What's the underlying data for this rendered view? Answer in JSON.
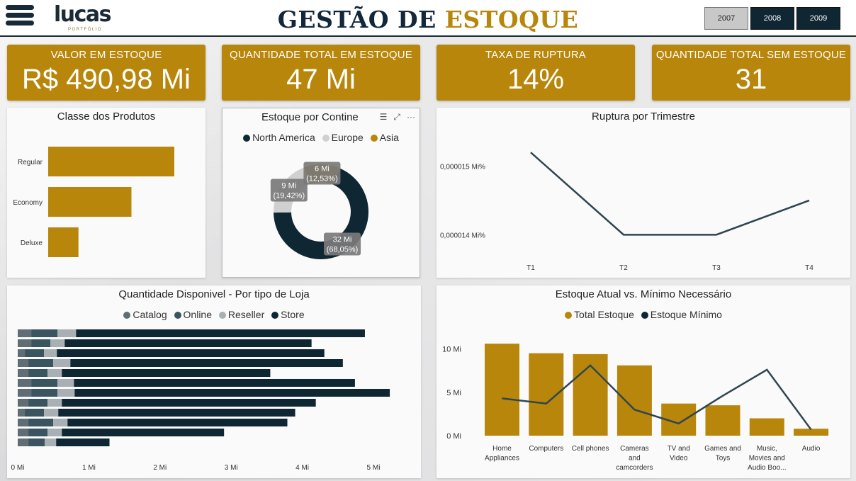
{
  "header": {
    "logo_text": "lucas",
    "logo_sub": "PORTFÓLIO",
    "title_part1": "GESTÃO DE",
    "title_part2": "ESTOQUE",
    "years": [
      {
        "label": "2007",
        "selected": false
      },
      {
        "label": "2008",
        "selected": true
      },
      {
        "label": "2009",
        "selected": true
      }
    ]
  },
  "kpis": [
    {
      "label": "VALOR EM ESTOQUE",
      "value": "R$ 490,98 Mi"
    },
    {
      "label": "QUANTIDADE TOTAL EM ESTOQUE",
      "value": "47 Mi"
    },
    {
      "label": "TAXA DE RUPTURA",
      "value": "14%"
    },
    {
      "label": "QUANTIDADE TOTAL SEM ESTOQUE",
      "value": "31"
    }
  ],
  "colors": {
    "gold": "#b8860b",
    "navy": "#0f2733",
    "slate": "#2f4550",
    "light_gray": "#c9c9c9"
  },
  "icons": {
    "menu": "hamburger-menu-icon",
    "filter": "filter-icon",
    "focus": "focus-mode-icon",
    "more": "more-options-icon"
  },
  "chart_data": [
    {
      "id": "classe",
      "type": "bar",
      "orientation": "horizontal",
      "title": "Classe dos Produtos",
      "categories": [
        "Regular",
        "Economy",
        "Deluxe"
      ],
      "values": [
        100,
        66,
        24
      ],
      "grid": false
    },
    {
      "id": "continente",
      "type": "pie",
      "variant": "donut",
      "title": "Estoque por Contine",
      "legend": [
        "North America",
        "Europe",
        "Asia"
      ],
      "slices": [
        {
          "name": "North America",
          "value": 32,
          "label": "32 Mi",
          "pct": "(68,05%)",
          "color": "#0f2733"
        },
        {
          "name": "Europe",
          "value": 9,
          "label": "9 Mi",
          "pct": "(19,42%)",
          "color": "#d0d0d0"
        },
        {
          "name": "Asia",
          "value": 6,
          "label": "6 Mi",
          "pct": "(12,53%)",
          "color": "#b8860b"
        }
      ],
      "percentages": [
        68.05,
        19.42,
        12.53
      ]
    },
    {
      "id": "ruptura",
      "type": "line",
      "title": "Ruptura por Trimestre",
      "x": [
        "T1",
        "T2",
        "T3",
        "T4"
      ],
      "values": [
        1.52e-05,
        1.4e-05,
        1.4e-05,
        1.45e-05
      ],
      "y_ticks": [
        {
          "value": 1.5e-05,
          "label": "0,000015 Mi%"
        },
        {
          "value": 1.4e-05,
          "label": "0,000014 Mi%"
        }
      ],
      "ylim": [
        1.358e-05,
        1.544e-05
      ],
      "color": "#2f4550",
      "grid": false
    },
    {
      "id": "loja",
      "type": "bar",
      "orientation": "horizontal",
      "stacked": true,
      "title": "Quantidade Disponivel - Por tipo de Loja",
      "legend": [
        "Catalog",
        "Online",
        "Reseller",
        "Store"
      ],
      "series_colors": [
        "#5e6e74",
        "#3a5560",
        "#a9b0b4",
        "#0f2733"
      ],
      "rows": [
        [
          0.19,
          0.37,
          0.26,
          4.06
        ],
        [
          0.19,
          0.27,
          0.2,
          3.47
        ],
        [
          0.1,
          0.27,
          0.18,
          3.76
        ],
        [
          0.15,
          0.35,
          0.24,
          3.83
        ],
        [
          0.15,
          0.27,
          0.2,
          2.93
        ],
        [
          0.19,
          0.37,
          0.23,
          3.95
        ],
        [
          0.19,
          0.37,
          0.24,
          4.43
        ],
        [
          0.15,
          0.27,
          0.2,
          3.57
        ],
        [
          0.1,
          0.27,
          0.2,
          3.33
        ],
        [
          0.15,
          0.35,
          0.2,
          3.09
        ],
        [
          0.15,
          0.27,
          0.2,
          2.28
        ],
        [
          0.15,
          0.23,
          0.16,
          0.75
        ]
      ],
      "x_ticks": [
        "0 Mi",
        "1 Mi",
        "2 Mi",
        "3 Mi",
        "4 Mi",
        "5 Mi"
      ],
      "xlim": [
        0,
        5
      ]
    },
    {
      "id": "estoque",
      "type": "bar",
      "title": "Estoque Atual vs. Mínimo Necessário",
      "legend": [
        "Total Estoque",
        "Estoque Mínimo"
      ],
      "categories": [
        [
          "Home",
          "Appliances"
        ],
        [
          "Computers"
        ],
        [
          "Cell phones"
        ],
        [
          "Cameras",
          "and",
          "camcorders"
        ],
        [
          "TV and",
          "Video"
        ],
        [
          "Games and",
          "Toys"
        ],
        [
          "Music,",
          "Movies and",
          "Audio Boo..."
        ],
        [
          "Audio"
        ]
      ],
      "series": [
        {
          "name": "Total Estoque",
          "type": "bar",
          "values": [
            10.6,
            9.5,
            9.4,
            8.1,
            3.7,
            3.5,
            2.0,
            0.8
          ]
        },
        {
          "name": "Estoque Mínimo",
          "type": "line",
          "values": [
            4.3,
            3.7,
            8.1,
            3.0,
            1.4,
            4.6,
            7.6,
            0.7
          ]
        }
      ],
      "y_ticks": [
        "0 Mi",
        "5 Mi",
        "10 Mi"
      ],
      "ylim": [
        0,
        12
      ]
    }
  ]
}
